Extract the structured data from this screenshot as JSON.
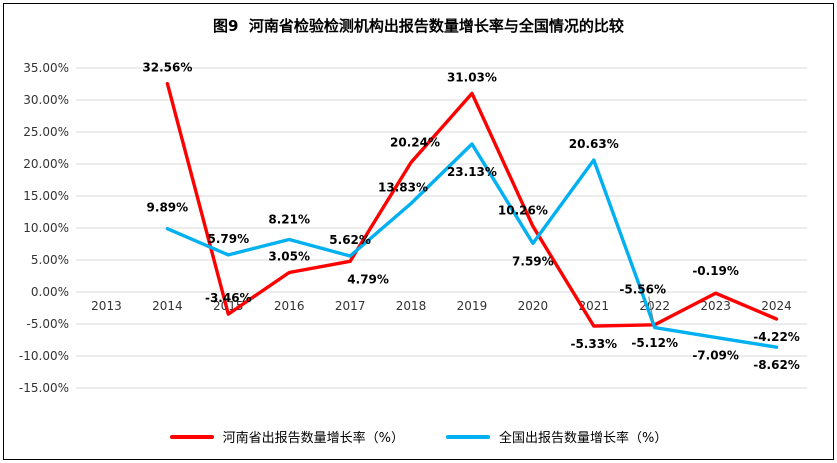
{
  "title": "图9  河南省检验检测机构出报告数量增长率与全国情况的比较",
  "chart_data": {
    "type": "line",
    "categories": [
      "2013",
      "2014",
      "2015",
      "2016",
      "2017",
      "2018",
      "2019",
      "2020",
      "2021",
      "2022",
      "2023",
      "2024"
    ],
    "ylim": [
      -15,
      35
    ],
    "ytick_values": [
      35,
      30,
      25,
      20,
      15,
      10,
      5,
      0,
      -5,
      -10,
      -15
    ],
    "ytick_labels": [
      "35.00%",
      "30.00%",
      "25.00%",
      "20.00%",
      "15.00%",
      "10.00%",
      "5.00%",
      "0.00%",
      "-5.00%",
      "-10.00%",
      "-15.00%"
    ],
    "grid": true,
    "grid_color": "#d9d9d9",
    "legend_position": "bottom",
    "series": [
      {
        "name": "河南省出报告数量增长率（%）",
        "color": "#ff0000",
        "values": [
          null,
          32.56,
          -3.46,
          3.05,
          4.79,
          20.24,
          31.03,
          10.26,
          -5.33,
          -5.12,
          -0.19,
          -4.22
        ],
        "labels": [
          null,
          {
            "t": "32.56%",
            "side": "above"
          },
          {
            "t": "-3.46%",
            "side": "above"
          },
          {
            "t": "3.05%",
            "side": "above"
          },
          {
            "t": "4.79%",
            "side": "below",
            "dx": 18
          },
          {
            "t": "20.24%",
            "side": "above",
            "dx": 4,
            "dy": -4
          },
          {
            "t": "31.03%",
            "side": "above"
          },
          {
            "t": "10.26%",
            "side": "above",
            "dx": -10
          },
          {
            "t": "-5.33%",
            "side": "below"
          },
          {
            "t": "-5.12%",
            "side": "below"
          },
          {
            "t": "-0.19%",
            "side": "above",
            "dy": -6
          },
          {
            "t": "-4.22%",
            "side": "below"
          }
        ]
      },
      {
        "name": "全国出报告数量增长率（%）",
        "color": "#00b0f0",
        "values": [
          null,
          9.89,
          5.79,
          8.21,
          5.62,
          13.83,
          23.13,
          7.59,
          20.63,
          -5.56,
          -7.09,
          -8.62
        ],
        "labels": [
          null,
          {
            "t": "9.89%",
            "side": "above",
            "dy": -5
          },
          {
            "t": "5.79%",
            "side": "above"
          },
          {
            "t": "8.21%",
            "side": "above",
            "dy": -4
          },
          {
            "t": "5.62%",
            "side": "above"
          },
          {
            "t": "13.83%",
            "side": "above",
            "dx": -8
          },
          {
            "t": "23.13%",
            "side": "below",
            "dy": 10
          },
          {
            "t": "7.59%",
            "side": "below"
          },
          {
            "t": "20.63%",
            "side": "above"
          },
          {
            "t": "-5.56%",
            "side": "above",
            "dx": -12,
            "dy": -22,
            "leader": true
          },
          {
            "t": "-7.09%",
            "side": "below"
          },
          {
            "t": "-8.62%",
            "side": "below"
          }
        ]
      }
    ]
  },
  "legend": {
    "items": [
      {
        "label": "河南省出报告数量增长率（%）",
        "color": "#ff0000"
      },
      {
        "label": "全国出报告数量增长率（%）",
        "color": "#00b0f0"
      }
    ]
  }
}
